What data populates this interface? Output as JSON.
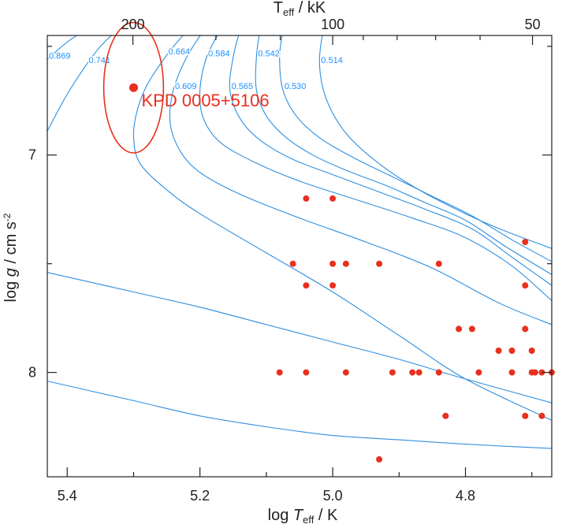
{
  "chart_data": {
    "type": "scatter",
    "title": "",
    "xlabel_main": "log",
    "xlabel_italic": "T",
    "xlabel_sub": "eff",
    "xlabel_tail": " / K",
    "ylabel_main": "log ",
    "ylabel_italic": "g",
    "ylabel_tail": " / cm s",
    "ylabel_sup": "-2",
    "top_label_main": "T",
    "top_label_sub": "eff",
    "top_label_tail": " / kK",
    "xlim": [
      5.43,
      4.67
    ],
    "ylim": [
      6.45,
      8.48
    ],
    "x_scale": "log10 K (reversed)",
    "y_scale": "log g (inverted, increasing downward)",
    "x_ticks": [
      {
        "value": 5.4,
        "label": "5.4"
      },
      {
        "value": 5.2,
        "label": "5.2"
      },
      {
        "value": 5.0,
        "label": "5.0"
      },
      {
        "value": 4.8,
        "label": "4.8"
      }
    ],
    "x_minor_ticks": [
      5.3,
      5.1,
      4.9,
      4.7
    ],
    "y_ticks": [
      {
        "value": 7,
        "label": "7"
      },
      {
        "value": 8,
        "label": "8"
      }
    ],
    "y_minor_ticks": [
      6.5,
      7.5
    ],
    "top_ticks": [
      {
        "value": 5.301,
        "label": "200"
      },
      {
        "value": 5.0,
        "label": "100"
      },
      {
        "value": 4.699,
        "label": "50"
      }
    ],
    "top_minor_ticks": [
      5.176,
      5.079,
      4.954,
      4.903,
      4.845,
      4.778
    ],
    "colors": {
      "tracks": "#2e8fe0",
      "points": "#e8301e",
      "axes": "#222222"
    },
    "tracks": [
      {
        "label": "0.869",
        "points": [
          [
            5.43,
            6.56
          ],
          [
            5.4,
            6.48
          ],
          [
            5.375,
            6.43
          ]
        ]
      },
      {
        "label": "0.741",
        "points": [
          [
            5.43,
            6.89
          ],
          [
            5.4,
            6.72
          ],
          [
            5.37,
            6.58
          ],
          [
            5.35,
            6.5
          ],
          [
            5.33,
            6.44
          ]
        ]
      },
      {
        "label": "0.664",
        "points": [
          [
            5.22,
            6.43
          ],
          [
            5.25,
            6.54
          ],
          [
            5.28,
            6.68
          ],
          [
            5.295,
            6.8
          ],
          [
            5.3,
            6.92
          ],
          [
            5.29,
            7.04
          ],
          [
            5.25,
            7.16
          ],
          [
            5.2,
            7.27
          ],
          [
            5.1,
            7.45
          ],
          [
            5.0,
            7.63
          ],
          [
            4.9,
            7.83
          ],
          [
            4.8,
            8.03
          ],
          [
            4.67,
            8.22
          ]
        ]
      },
      {
        "label": "0.609",
        "points": [
          [
            5.195,
            6.43
          ],
          [
            5.22,
            6.55
          ],
          [
            5.24,
            6.7
          ],
          [
            5.245,
            6.85
          ],
          [
            5.23,
            6.98
          ],
          [
            5.2,
            7.08
          ],
          [
            5.14,
            7.18
          ],
          [
            5.05,
            7.29
          ],
          [
            4.95,
            7.4
          ],
          [
            4.85,
            7.52
          ],
          [
            4.75,
            7.68
          ],
          [
            4.67,
            7.78
          ]
        ]
      },
      {
        "label": "0.584",
        "points": [
          [
            5.17,
            6.43
          ],
          [
            5.19,
            6.55
          ],
          [
            5.2,
            6.7
          ],
          [
            5.195,
            6.83
          ],
          [
            5.17,
            6.94
          ],
          [
            5.12,
            7.03
          ],
          [
            5.05,
            7.12
          ],
          [
            4.97,
            7.2
          ],
          [
            4.88,
            7.29
          ],
          [
            4.8,
            7.38
          ],
          [
            4.73,
            7.51
          ],
          [
            4.67,
            7.67
          ]
        ]
      },
      {
        "label": "0.565",
        "points": [
          [
            5.14,
            6.43
          ],
          [
            5.15,
            6.55
          ],
          [
            5.155,
            6.7
          ],
          [
            5.14,
            6.83
          ],
          [
            5.11,
            6.93
          ],
          [
            5.06,
            7.02
          ],
          [
            5.0,
            7.09
          ],
          [
            4.93,
            7.17
          ],
          [
            4.86,
            7.25
          ],
          [
            4.79,
            7.34
          ],
          [
            4.73,
            7.47
          ],
          [
            4.67,
            7.6
          ]
        ]
      },
      {
        "label": "0.542",
        "points": [
          [
            5.11,
            6.43
          ],
          [
            5.115,
            6.55
          ],
          [
            5.115,
            6.7
          ],
          [
            5.1,
            6.82
          ],
          [
            5.07,
            6.92
          ],
          [
            5.03,
            7.0
          ],
          [
            4.98,
            7.07
          ],
          [
            4.92,
            7.14
          ],
          [
            4.86,
            7.22
          ],
          [
            4.8,
            7.3
          ],
          [
            4.74,
            7.42
          ],
          [
            4.67,
            7.55
          ]
        ]
      },
      {
        "label": "0.530",
        "points": [
          [
            5.075,
            6.43
          ],
          [
            5.08,
            6.55
          ],
          [
            5.075,
            6.7
          ],
          [
            5.055,
            6.82
          ],
          [
            5.02,
            6.92
          ],
          [
            4.97,
            7.01
          ],
          [
            4.91,
            7.1
          ],
          [
            4.85,
            7.19
          ],
          [
            4.79,
            7.28
          ],
          [
            4.73,
            7.39
          ],
          [
            4.67,
            7.49
          ]
        ]
      },
      {
        "label": "0.514",
        "points": [
          [
            5.015,
            6.43
          ],
          [
            5.02,
            6.58
          ],
          [
            5.01,
            6.74
          ],
          [
            4.98,
            6.9
          ],
          [
            4.93,
            7.04
          ],
          [
            4.87,
            7.16
          ],
          [
            4.8,
            7.27
          ],
          [
            4.74,
            7.35
          ],
          [
            4.67,
            7.43
          ]
        ]
      },
      {
        "label": "",
        "points": [
          [
            5.43,
            7.54
          ],
          [
            5.3,
            7.63
          ],
          [
            5.2,
            7.7
          ],
          [
            5.1,
            7.78
          ],
          [
            5.0,
            7.86
          ],
          [
            4.9,
            7.94
          ],
          [
            4.8,
            8.03
          ],
          [
            4.67,
            8.14
          ]
        ]
      },
      {
        "label": "",
        "points": [
          [
            5.43,
            8.04
          ],
          [
            5.3,
            8.13
          ],
          [
            5.2,
            8.2
          ],
          [
            5.1,
            8.25
          ],
          [
            5.0,
            8.29
          ],
          [
            4.9,
            8.31
          ],
          [
            4.8,
            8.33
          ],
          [
            4.67,
            8.35
          ]
        ]
      }
    ],
    "highlight": {
      "label": "KPD 0005+5106",
      "x": 5.3,
      "y": 6.69,
      "x_err": 0.045,
      "y_err": 0.3
    },
    "points": [
      {
        "x": 5.04,
        "y": 7.2
      },
      {
        "x": 5.0,
        "y": 7.2
      },
      {
        "x": 4.71,
        "y": 7.4
      },
      {
        "x": 5.06,
        "y": 7.5
      },
      {
        "x": 5.0,
        "y": 7.5
      },
      {
        "x": 4.98,
        "y": 7.5
      },
      {
        "x": 4.93,
        "y": 7.5
      },
      {
        "x": 4.84,
        "y": 7.5
      },
      {
        "x": 5.04,
        "y": 7.6
      },
      {
        "x": 5.0,
        "y": 7.6
      },
      {
        "x": 4.71,
        "y": 7.6
      },
      {
        "x": 4.81,
        "y": 7.8
      },
      {
        "x": 4.79,
        "y": 7.8
      },
      {
        "x": 4.71,
        "y": 7.8
      },
      {
        "x": 4.75,
        "y": 7.9
      },
      {
        "x": 4.73,
        "y": 7.9
      },
      {
        "x": 4.7,
        "y": 7.9
      },
      {
        "x": 5.08,
        "y": 8.0
      },
      {
        "x": 5.04,
        "y": 8.0
      },
      {
        "x": 4.98,
        "y": 8.0
      },
      {
        "x": 4.91,
        "y": 8.0
      },
      {
        "x": 4.88,
        "y": 8.0
      },
      {
        "x": 4.87,
        "y": 8.0
      },
      {
        "x": 4.84,
        "y": 8.0
      },
      {
        "x": 4.78,
        "y": 8.0
      },
      {
        "x": 4.73,
        "y": 8.0
      },
      {
        "x": 4.7,
        "y": 8.0
      },
      {
        "x": 4.695,
        "y": 8.0
      },
      {
        "x": 4.685,
        "y": 8.0
      },
      {
        "x": 4.67,
        "y": 8.0
      },
      {
        "x": 4.83,
        "y": 8.2
      },
      {
        "x": 4.71,
        "y": 8.2
      },
      {
        "x": 4.685,
        "y": 8.2
      },
      {
        "x": 4.93,
        "y": 8.4
      }
    ]
  }
}
